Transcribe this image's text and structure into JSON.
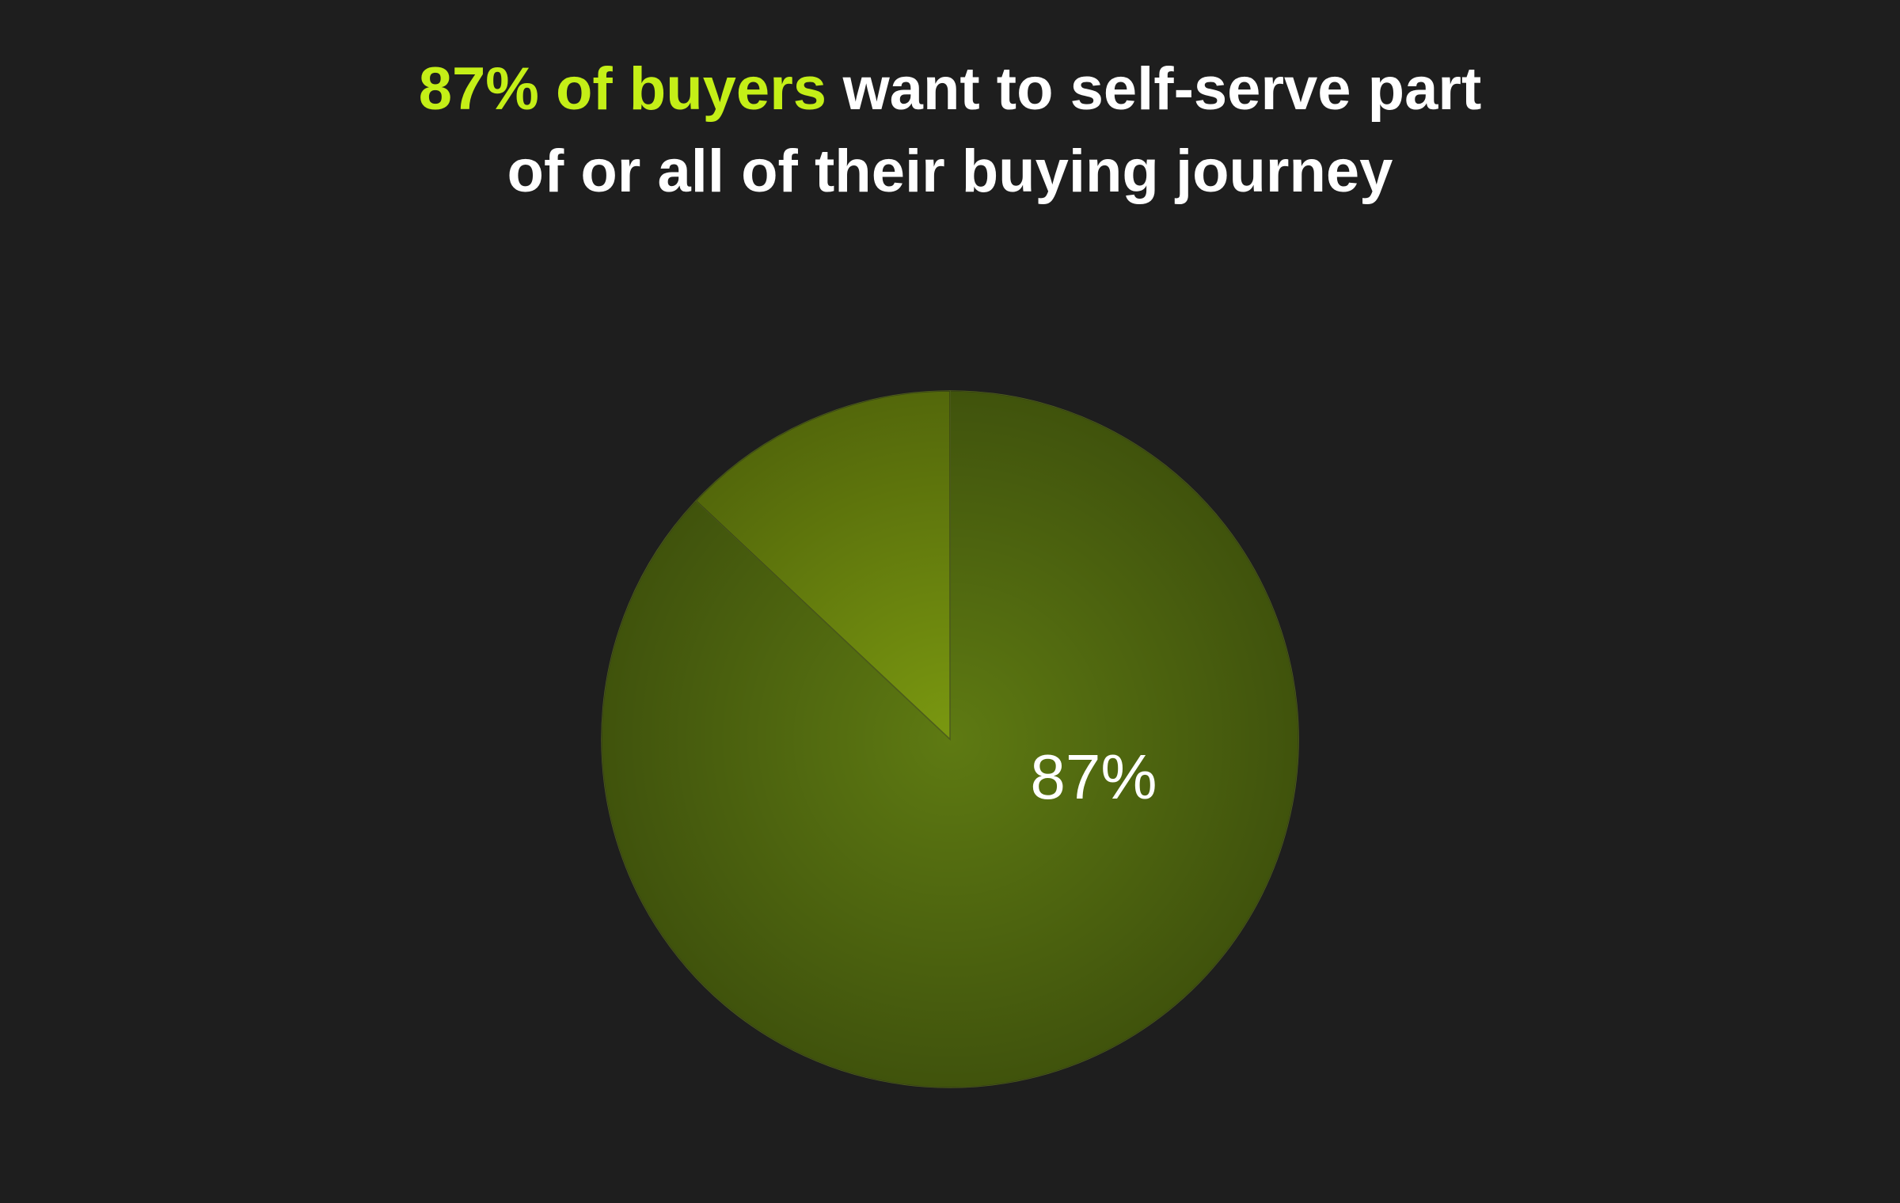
{
  "chart_data": {
    "type": "pie",
    "title": [
      "87% of buyers",
      "want to self-serve part",
      "of or all of their buying journey"
    ],
    "title_highlight_color": "#c4ef17",
    "values": [
      87,
      13
    ],
    "value_labels": [
      "87%",
      null
    ],
    "colors": [
      "#5e7a12",
      "#7a9810"
    ]
  }
}
